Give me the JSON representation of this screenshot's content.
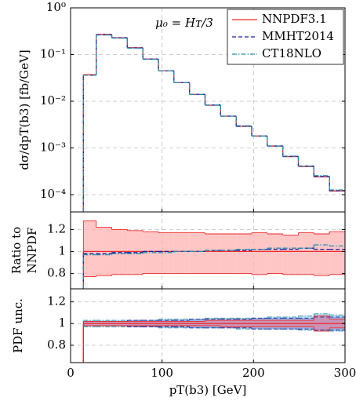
{
  "chart_data": [
    {
      "type": "histogram",
      "log_y": true,
      "grid": true,
      "ylabel": "dσ/dpT(b3) [fb/GeV]",
      "annotation": "μ₀ = Hᴛ/3",
      "legend_position": "upper right",
      "bins": [
        14,
        28,
        45,
        62,
        79,
        96,
        113,
        130,
        147,
        164,
        181,
        198,
        215,
        232,
        249,
        266,
        283,
        300
      ],
      "xlim": [
        0,
        300
      ],
      "xticks": [
        0,
        100,
        200,
        300
      ],
      "ylim": [
        4.27e-05,
        1
      ],
      "yticks": [
        {
          "value": 1,
          "label": "10⁰"
        },
        {
          "value": 0.1,
          "label": "10⁻¹"
        },
        {
          "value": 0.01,
          "label": "10⁻²"
        },
        {
          "value": 0.001,
          "label": "10⁻³"
        },
        {
          "value": 0.0001,
          "label": "10⁻⁴"
        }
      ],
      "series": [
        {
          "name": "NNPDF3.1",
          "color": "#ee2a2a",
          "dash": "solid",
          "values": [
            0.037,
            0.27,
            0.23,
            0.14,
            0.08,
            0.045,
            0.025,
            0.014,
            0.0082,
            0.0048,
            0.0029,
            0.0018,
            0.0011,
            0.00065,
            0.0004,
            0.00024,
            0.00012
          ]
        },
        {
          "name": "MMHT2014",
          "color": "#1c1c99",
          "dash": "dashed",
          "values": [
            0.036,
            0.265,
            0.228,
            0.139,
            0.08,
            0.045,
            0.025,
            0.014,
            0.0083,
            0.0048,
            0.0029,
            0.0018,
            0.0011,
            0.00066,
            0.00041,
            0.000245,
            0.000122
          ]
        },
        {
          "name": "CT18NLO",
          "color": "#2b8fae",
          "dash": "dashdot",
          "values": [
            0.036,
            0.262,
            0.225,
            0.137,
            0.079,
            0.045,
            0.025,
            0.014,
            0.0083,
            0.0048,
            0.003,
            0.0018,
            0.0011,
            0.00067,
            0.00041,
            0.000255,
            0.000126
          ]
        }
      ]
    },
    {
      "type": "histogram",
      "log_y": false,
      "grid": true,
      "ylabel": [
        "Ratio to",
        "NNPDF"
      ],
      "bins": [
        14,
        28,
        45,
        62,
        79,
        96,
        113,
        130,
        147,
        164,
        181,
        198,
        215,
        232,
        249,
        266,
        283,
        300
      ],
      "xlim": [
        0,
        300
      ],
      "xticks": [
        0,
        100,
        200,
        300
      ],
      "ylim": [
        0.66,
        1.36
      ],
      "yticks": [
        0.8,
        1,
        1.2
      ],
      "series": [
        {
          "color": "#ee2a2a",
          "dash": "solid",
          "band_color": "#ffb3b3",
          "values": [
            1,
            1,
            1,
            1,
            1,
            1,
            1,
            1,
            1,
            1,
            1,
            1,
            1,
            1,
            1,
            1,
            1
          ],
          "band_lower": [
            0.77,
            0.78,
            0.79,
            0.79,
            0.8,
            0.8,
            0.8,
            0.8,
            0.8,
            0.8,
            0.8,
            0.79,
            0.8,
            0.79,
            0.79,
            0.78,
            0.79
          ],
          "band_upper": [
            1.28,
            1.22,
            1.2,
            1.19,
            1.18,
            1.17,
            1.17,
            1.17,
            1.16,
            1.16,
            1.16,
            1.17,
            1.16,
            1.15,
            1.17,
            1.16,
            1.18
          ]
        },
        {
          "color": "#1c1c99",
          "dash": "dashed",
          "values": [
            0.98,
            0.98,
            0.99,
            0.99,
            1.0,
            1.0,
            1.0,
            1.0,
            1.01,
            1.01,
            1.01,
            1.02,
            1.02,
            1.02,
            1.03,
            1.02,
            1.02
          ]
        },
        {
          "color": "#2b8fae",
          "dash": "dashdot",
          "values": [
            0.97,
            0.97,
            0.98,
            0.98,
            0.99,
            0.99,
            1.0,
            1.0,
            1.01,
            1.01,
            1.02,
            1.02,
            1.03,
            1.03,
            1.03,
            1.06,
            1.05
          ]
        }
      ]
    },
    {
      "type": "histogram",
      "log_y": false,
      "grid": true,
      "ylabel": "PDF unc.",
      "xlabel": "pT(b3) [GeV]",
      "bins": [
        14,
        28,
        45,
        62,
        79,
        96,
        113,
        130,
        147,
        164,
        181,
        198,
        215,
        232,
        249,
        266,
        283,
        300
      ],
      "xlim": [
        0,
        300
      ],
      "xticks": [
        0,
        100,
        200,
        300
      ],
      "ylim": [
        0.64,
        1.32
      ],
      "yticks": [
        0.8,
        1,
        1.2
      ],
      "series": [
        {
          "color": "#2b8fae",
          "dash": "dashdot",
          "band_color": "#9fd3e6",
          "band_lower": [
            0.97,
            0.97,
            0.97,
            0.97,
            0.97,
            0.96,
            0.96,
            0.96,
            0.96,
            0.96,
            0.95,
            0.95,
            0.95,
            0.95,
            0.94,
            0.94,
            0.93
          ],
          "band_upper": [
            1.03,
            1.03,
            1.03,
            1.03,
            1.03,
            1.04,
            1.04,
            1.04,
            1.05,
            1.05,
            1.05,
            1.05,
            1.06,
            1.06,
            1.07,
            1.09,
            1.08
          ]
        },
        {
          "color": "#1c1c99",
          "dash": "dashed",
          "band_color": "#8fa6e0",
          "band_lower": [
            0.98,
            0.98,
            0.98,
            0.97,
            0.97,
            0.97,
            0.97,
            0.96,
            0.96,
            0.96,
            0.96,
            0.95,
            0.95,
            0.95,
            0.95,
            0.94,
            0.94
          ],
          "band_upper": [
            1.02,
            1.02,
            1.02,
            1.03,
            1.03,
            1.03,
            1.03,
            1.04,
            1.04,
            1.04,
            1.04,
            1.05,
            1.05,
            1.05,
            1.05,
            1.06,
            1.06
          ]
        },
        {
          "color": "#ee2a2a",
          "dash": "solid",
          "band_color": "#d98aa8",
          "values": [
            1,
            1,
            1,
            1,
            1,
            1,
            1,
            1,
            1,
            1,
            1,
            1,
            1,
            1,
            1,
            1,
            1
          ],
          "band_lower": [
            0.98,
            0.98,
            0.98,
            0.98,
            0.98,
            0.98,
            0.98,
            0.98,
            0.98,
            0.97,
            0.97,
            0.97,
            0.97,
            0.97,
            0.97,
            0.93,
            0.96
          ],
          "band_upper": [
            1.02,
            1.02,
            1.02,
            1.02,
            1.02,
            1.02,
            1.02,
            1.02,
            1.03,
            1.03,
            1.03,
            1.03,
            1.03,
            1.03,
            1.03,
            1.07,
            1.04
          ]
        }
      ]
    }
  ]
}
